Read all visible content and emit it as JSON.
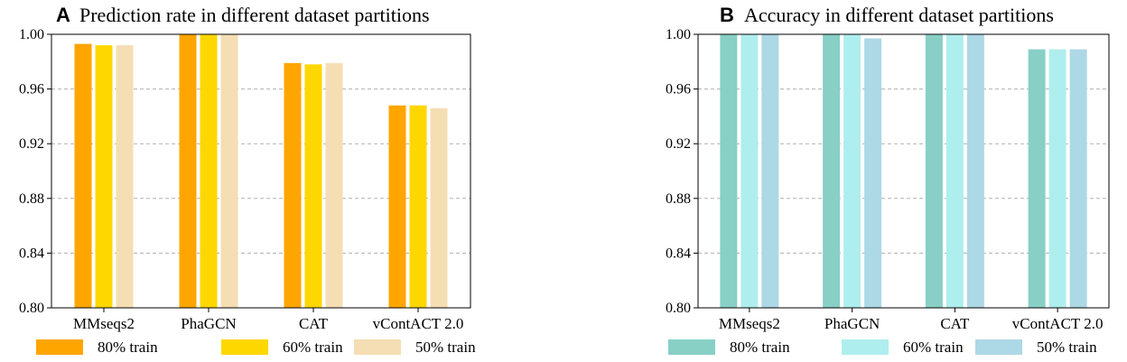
{
  "chart_data": [
    {
      "type": "bar",
      "panel_label": "A",
      "title": "Prediction rate in different dataset partitions",
      "categories": [
        "MMseqs2",
        "PhaGCN",
        "CAT",
        "vContACT 2.0"
      ],
      "ylim": [
        0.8,
        1.0
      ],
      "yticks": [
        "0.80",
        "0.84",
        "0.88",
        "0.92",
        "0.96",
        "1.00"
      ],
      "grid": "y-dashed",
      "legend_position": "bottom",
      "series": [
        {
          "name": "80% train",
          "color": "#FFA500",
          "values": [
            0.993,
            1.0,
            0.979,
            0.948
          ]
        },
        {
          "name": "60% train",
          "color": "#FFD700",
          "values": [
            0.992,
            1.0,
            0.978,
            0.948
          ]
        },
        {
          "name": "50% train",
          "color": "#F5DEB3",
          "values": [
            0.992,
            1.0,
            0.979,
            0.946
          ]
        }
      ]
    },
    {
      "type": "bar",
      "panel_label": "B",
      "title": "Accuracy in different dataset partitions",
      "categories": [
        "MMseqs2",
        "PhaGCN",
        "CAT",
        "vContACT 2.0"
      ],
      "ylim": [
        0.8,
        1.0
      ],
      "yticks": [
        "0.80",
        "0.84",
        "0.88",
        "0.92",
        "0.96",
        "1.00"
      ],
      "grid": "y-dashed",
      "legend_position": "bottom",
      "series": [
        {
          "name": "80% train",
          "color": "#88CFC6",
          "values": [
            1.0,
            1.0,
            1.0,
            0.989
          ]
        },
        {
          "name": "60% train",
          "color": "#AFEEEE",
          "values": [
            1.0,
            1.0,
            1.0,
            0.989
          ]
        },
        {
          "name": "50% train",
          "color": "#ADD8E6",
          "values": [
            1.0,
            0.997,
            1.0,
            0.989
          ]
        }
      ]
    }
  ]
}
